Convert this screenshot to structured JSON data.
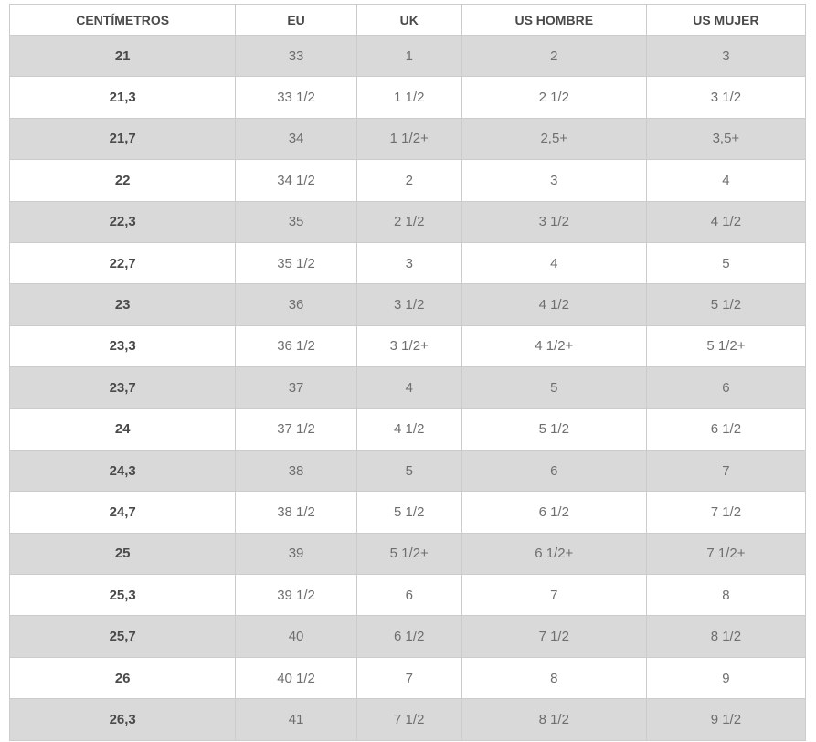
{
  "table": {
    "headers": [
      "CENTÍMETROS",
      "EU",
      "UK",
      "US HOMBRE",
      "US MUJER"
    ],
    "rows": [
      [
        "21",
        "33",
        "1",
        "2",
        "3"
      ],
      [
        "21,3",
        "33 1/2",
        "1 1/2",
        "2 1/2",
        "3 1/2"
      ],
      [
        "21,7",
        "34",
        "1 1/2+",
        "2,5+",
        "3,5+"
      ],
      [
        "22",
        "34 1/2",
        "2",
        "3",
        "4"
      ],
      [
        "22,3",
        "35",
        "2 1/2",
        "3 1/2",
        "4 1/2"
      ],
      [
        "22,7",
        "35 1/2",
        "3",
        "4",
        "5"
      ],
      [
        "23",
        "36",
        "3 1/2",
        "4 1/2",
        "5 1/2"
      ],
      [
        "23,3",
        "36 1/2",
        "3 1/2+",
        "4 1/2+",
        "5 1/2+"
      ],
      [
        "23,7",
        "37",
        "4",
        "5",
        "6"
      ],
      [
        "24",
        "37 1/2",
        "4 1/2",
        "5 1/2",
        "6 1/2"
      ],
      [
        "24,3",
        "38",
        "5",
        "6",
        "7"
      ],
      [
        "24,7",
        "38 1/2",
        "5 1/2",
        "6 1/2",
        "7 1/2"
      ],
      [
        "25",
        "39",
        "5 1/2+",
        "6 1/2+",
        "7 1/2+"
      ],
      [
        "25,3",
        "39 1/2",
        "6",
        "7",
        "8"
      ],
      [
        "25,7",
        "40",
        "6 1/2",
        "7 1/2",
        "8 1/2"
      ],
      [
        "26",
        "40 1/2",
        "7",
        "8",
        "9"
      ],
      [
        "26,3",
        "41",
        "7 1/2",
        "8 1/2",
        "9 1/2"
      ]
    ],
    "colors": {
      "stripe_row_bg": "#d9d9d9",
      "plain_row_bg": "#ffffff",
      "border": "#cccccc",
      "header_text": "#4a4a4a",
      "cell_text": "#6e6e6e"
    }
  }
}
